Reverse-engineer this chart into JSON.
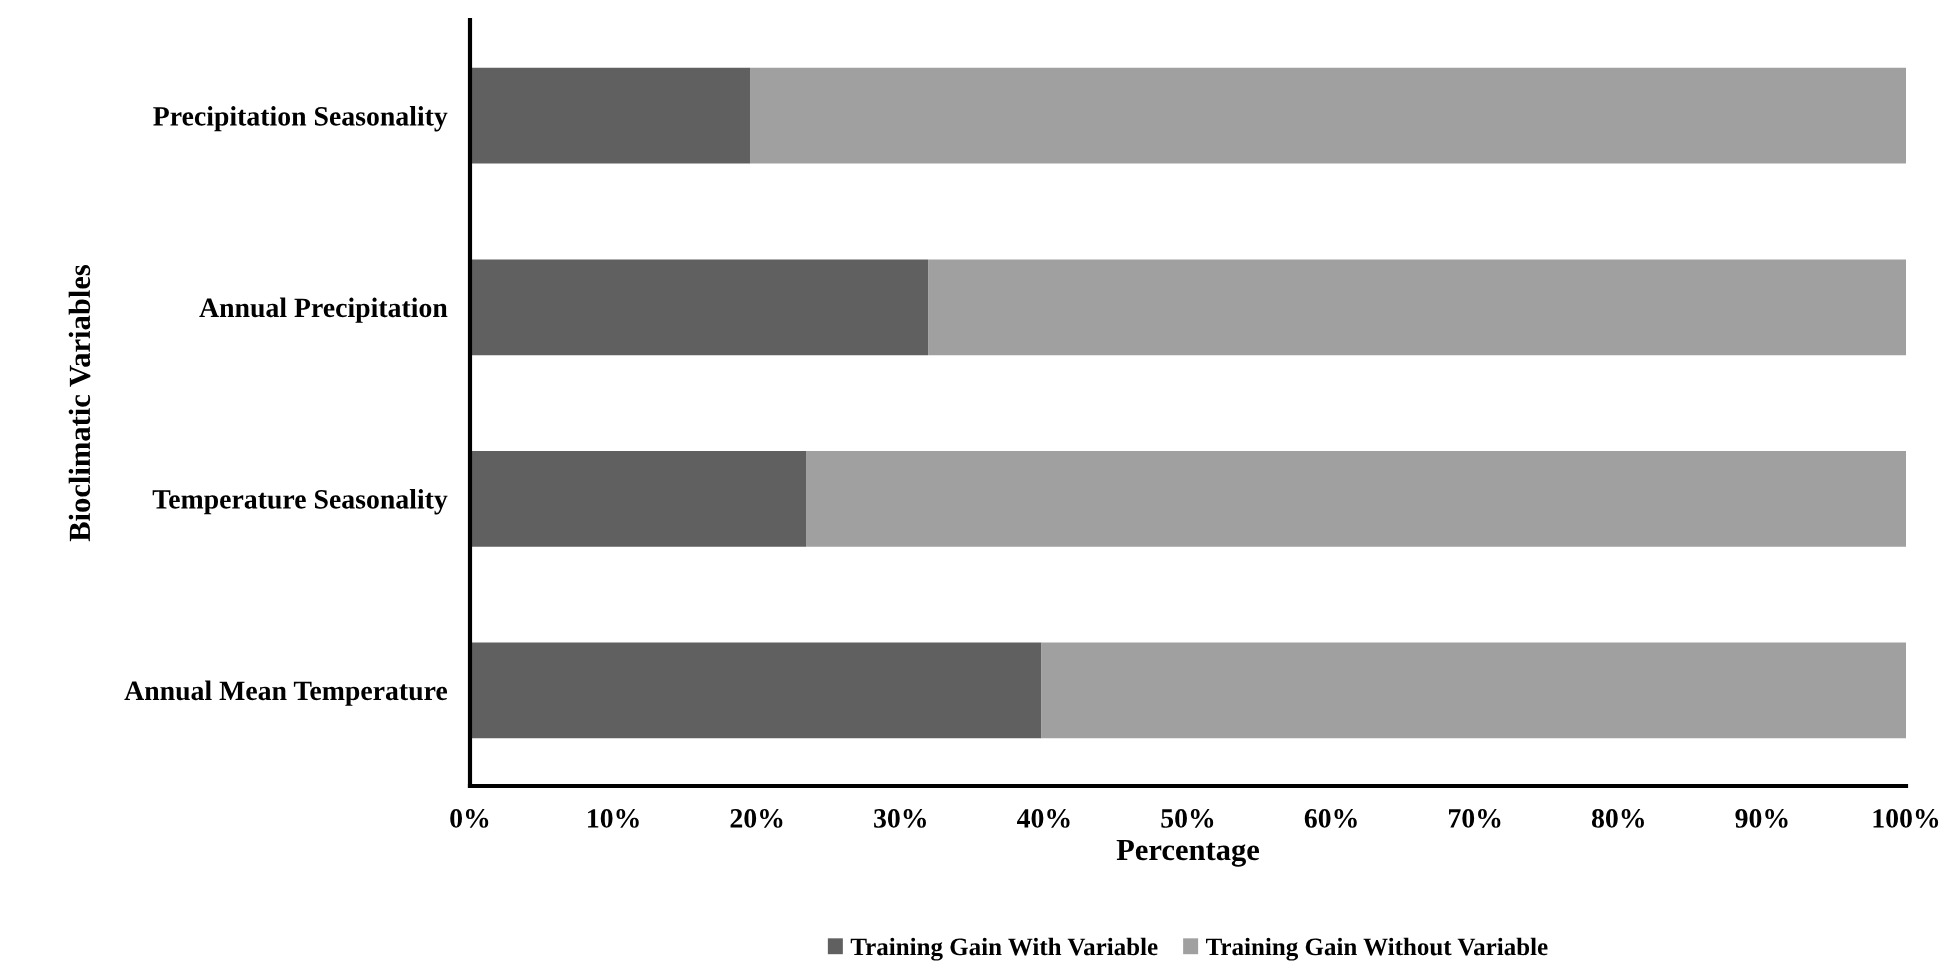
{
  "chart_data": {
    "type": "bar",
    "orientation": "horizontal",
    "stacked": true,
    "xlabel": "Percentage",
    "ylabel": "Bioclimatic Variables",
    "categories": [
      "Precipitation Seasonality",
      "Annual Precipitation",
      "Temperature Seasonality",
      "Annual Mean Temperature"
    ],
    "series": [
      {
        "name": "Training Gain With Variable",
        "color": "#606060",
        "values": [
          19.5,
          31.9,
          23.4,
          39.8
        ]
      },
      {
        "name": "Training Gain Without Variable",
        "color": "#a0a0a0",
        "values": [
          80.5,
          68.1,
          76.6,
          60.2
        ]
      }
    ],
    "xlim": [
      0,
      100
    ],
    "xticks": [
      {
        "value": 0,
        "label": "0%"
      },
      {
        "value": 10,
        "label": "10%"
      },
      {
        "value": 20,
        "label": "20%"
      },
      {
        "value": 30,
        "label": "30%"
      },
      {
        "value": 40,
        "label": "40%"
      },
      {
        "value": 50,
        "label": "50%"
      },
      {
        "value": 60,
        "label": "60%"
      },
      {
        "value": 70,
        "label": "70%"
      },
      {
        "value": 80,
        "label": "80%"
      },
      {
        "value": 90,
        "label": "90%"
      },
      {
        "value": 100,
        "label": "100%"
      }
    ],
    "grid": false,
    "legend": "bottom"
  }
}
